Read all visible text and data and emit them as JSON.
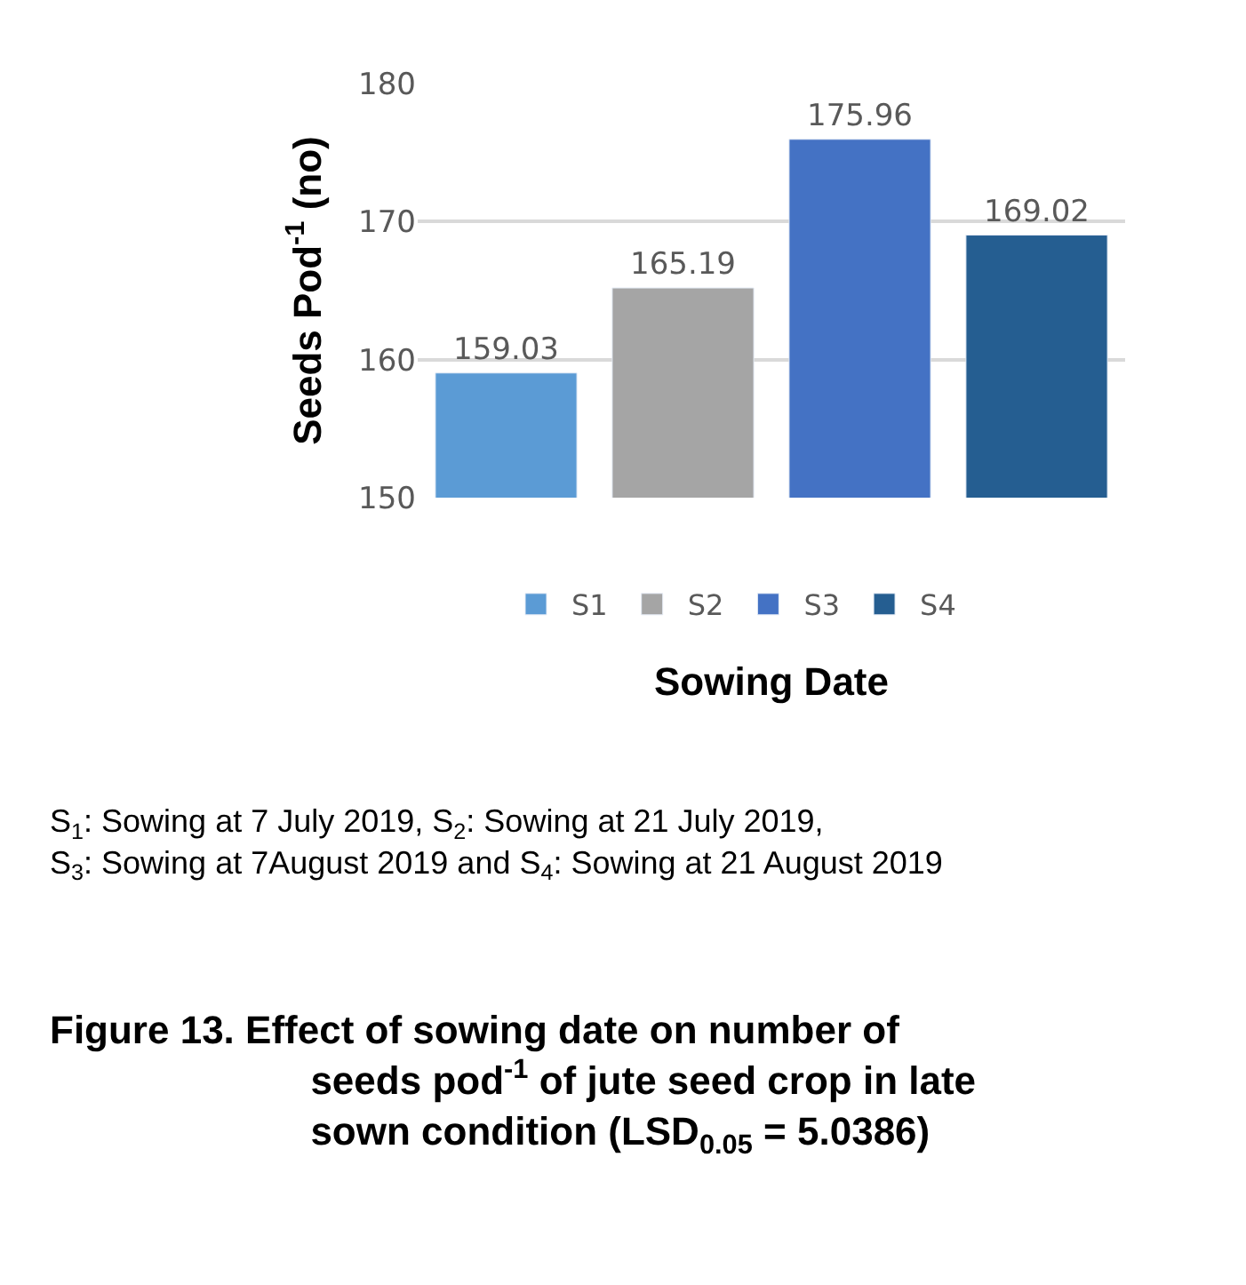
{
  "chart_data": {
    "type": "bar",
    "ylabel": "Seeds Pod$^{-1}$ (no)",
    "xlabel": "Sowing Date",
    "categories": [
      null,
      null,
      null,
      null
    ],
    "series": [
      {
        "name": "S1",
        "color": "#5b9bd5",
        "values": [
          159.03,
          null,
          null,
          null
        ]
      },
      {
        "name": "S2",
        "color": "#a5a5a5",
        "values": [
          null,
          165.19,
          null,
          null
        ]
      },
      {
        "name": "S3",
        "color": "#4472c4",
        "values": [
          null,
          null,
          175.96,
          null
        ]
      },
      {
        "name": "S4",
        "color": "#255e91",
        "values": [
          null,
          null,
          null,
          169.02
        ]
      }
    ],
    "ylim": [
      150,
      180
    ],
    "yticks": [
      150,
      160,
      170,
      180
    ],
    "grid": "y",
    "legend": "bottom",
    "data_labels": true,
    "annotations": [
      "S$_{1}$: Sowing at 7 July 2019, S$_{2}$: Sowing at 21 July 2019, S$_{3}$: Sowing at 7August 2019 and S$_{4}$: Sowing at 21 August 2019",
      "Figure 13. Effect of sowing date on number of seeds pod$^{-1}$ of jute seed crop in late sown condition (LSD$_{0.05}$ = 5.0386)"
    ]
  }
}
